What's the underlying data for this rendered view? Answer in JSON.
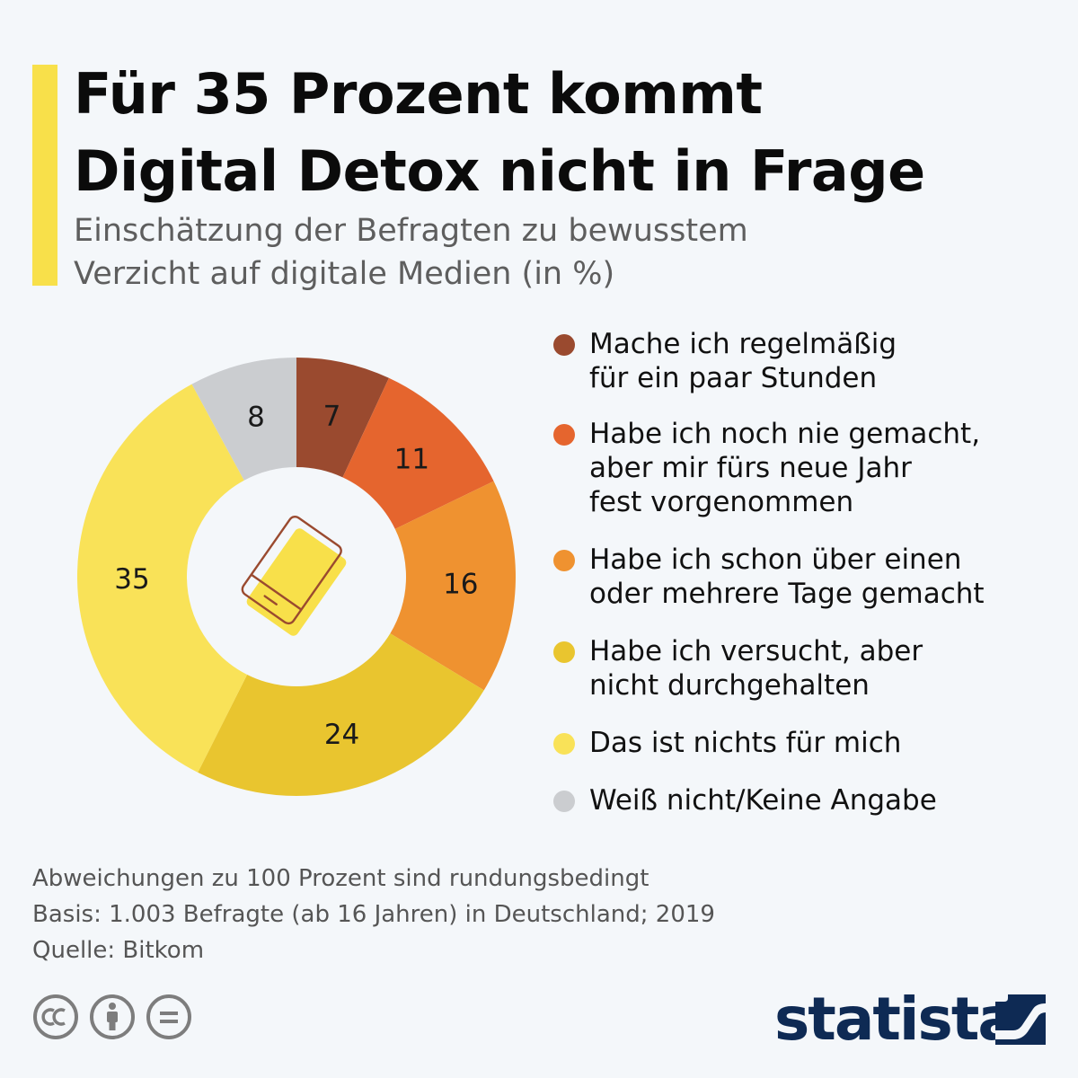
{
  "header": {
    "title_line1": "Für 35 Prozent kommt",
    "title_line2": "Digital Detox nicht in Frage",
    "subtitle_line1": "Einschätzung der Befragten zu bewusstem",
    "subtitle_line2": "Verzicht auf digitale Medien (in %)"
  },
  "chart_data": {
    "type": "pie",
    "variant": "donut",
    "title": "Für 35 Prozent kommt Digital Detox nicht in Frage",
    "subtitle": "Einschätzung der Befragten zu bewusstem Verzicht auf digitale Medien (in %)",
    "unit": "%",
    "slices": [
      {
        "label": "Mache ich regelmäßig\nfür ein paar Stunden",
        "value": 7,
        "color": "#9a4a2f"
      },
      {
        "label": "Habe ich noch nie gemacht,\naber mir fürs neue Jahr\nfest vorgenommen",
        "value": 11,
        "color": "#e5652e"
      },
      {
        "label": "Habe ich schon über einen\noder mehrere Tage gemacht",
        "value": 16,
        "color": "#ef9230"
      },
      {
        "label": "Habe ich versucht, aber\nnicht durchgehalten",
        "value": 24,
        "color": "#e9c52f"
      },
      {
        "label": "Das ist nichts für mich",
        "value": 35,
        "color": "#f9e258"
      },
      {
        "label": "Weiß nicht/Keine Angabe",
        "value": 8,
        "color": "#cbcdd0"
      }
    ],
    "center_icon": "smartphone-icon"
  },
  "footnotes": [
    "Abweichungen zu 100 Prozent sind rundungsbedingt",
    "Basis: 1.003 Befragte (ab 16 Jahren) in Deutschland; 2019",
    "Quelle: Bitkom"
  ],
  "license_icons": [
    "cc-icon",
    "by-attribution-icon",
    "no-derivatives-icon"
  ],
  "brand": {
    "name": "statista",
    "color": "#0e2a54"
  },
  "colors": {
    "accent": "#f8e04a",
    "background": "#f4f7fa",
    "title": "#0b0b0b",
    "subtitle": "#5e5e5e",
    "icon_stroke": "#9a4a2f"
  }
}
